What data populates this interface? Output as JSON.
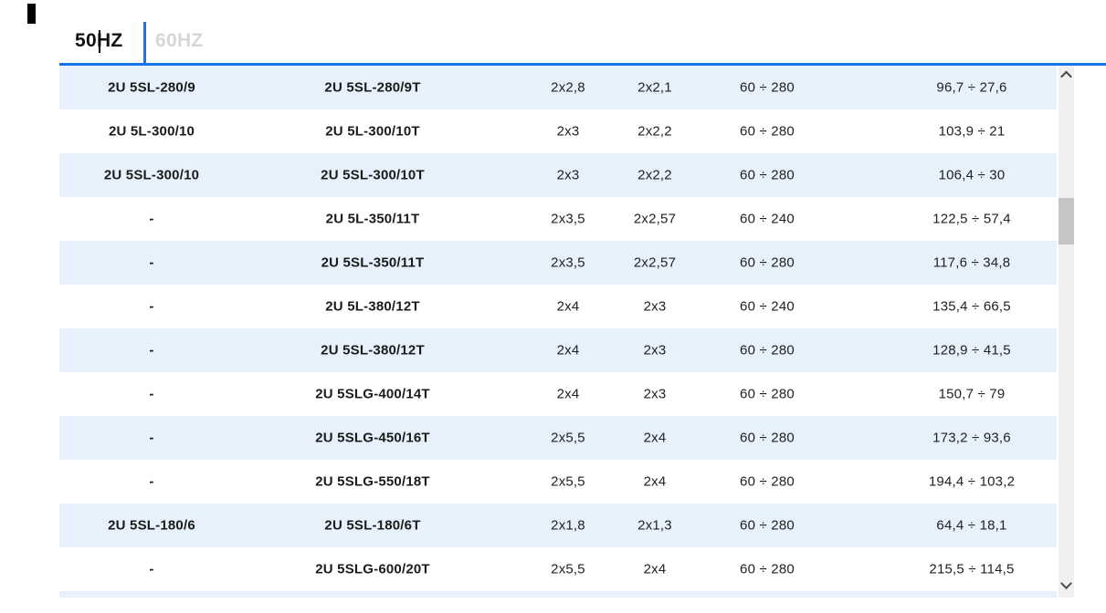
{
  "tabs": {
    "items": [
      {
        "label": "50HZ",
        "active": true
      },
      {
        "label": "60HZ",
        "active": false
      }
    ]
  },
  "table": {
    "rows": [
      {
        "cols": [
          "2U 5SL-280/9",
          "2U 5SL-280/9T",
          "2x2,8",
          "2x2,1",
          "60 ÷ 280",
          "96,7 ÷ 27,6"
        ]
      },
      {
        "cols": [
          "2U 5L-300/10",
          "2U 5L-300/10T",
          "2x3",
          "2x2,2",
          "60 ÷ 280",
          "103,9 ÷ 21"
        ]
      },
      {
        "cols": [
          "2U 5SL-300/10",
          "2U 5SL-300/10T",
          "2x3",
          "2x2,2",
          "60 ÷ 280",
          "106,4 ÷ 30"
        ]
      },
      {
        "cols": [
          "-",
          "2U 5L-350/11T",
          "2x3,5",
          "2x2,57",
          "60 ÷ 240",
          "122,5 ÷ 57,4"
        ]
      },
      {
        "cols": [
          "-",
          "2U 5SL-350/11T",
          "2x3,5",
          "2x2,57",
          "60 ÷ 280",
          "117,6 ÷ 34,8"
        ]
      },
      {
        "cols": [
          "-",
          "2U 5L-380/12T",
          "2x4",
          "2x3",
          "60 ÷ 240",
          "135,4 ÷ 66,5"
        ]
      },
      {
        "cols": [
          "-",
          "2U 5SL-380/12T",
          "2x4",
          "2x3",
          "60 ÷ 280",
          "128,9 ÷ 41,5"
        ]
      },
      {
        "cols": [
          "-",
          "2U 5SLG-400/14T",
          "2x4",
          "2x3",
          "60 ÷ 280",
          "150,7 ÷ 79"
        ]
      },
      {
        "cols": [
          "-",
          "2U 5SLG-450/16T",
          "2x5,5",
          "2x4",
          "60 ÷ 280",
          "173,2 ÷ 93,6"
        ]
      },
      {
        "cols": [
          "-",
          "2U 5SLG-550/18T",
          "2x5,5",
          "2x4",
          "60 ÷ 280",
          "194,4 ÷ 103,2"
        ]
      },
      {
        "cols": [
          "2U 5SL-180/6",
          "2U 5SL-180/6T",
          "2x1,8",
          "2x1,3",
          "60 ÷ 280",
          "64,4 ÷ 18,1"
        ]
      },
      {
        "cols": [
          "-",
          "2U 5SLG-600/20T",
          "2x5,5",
          "2x4",
          "60 ÷ 280",
          "215,5 ÷ 114,5"
        ]
      }
    ]
  },
  "icons": {
    "scrollbar_up": "chevron-up",
    "scrollbar_down": "chevron-down"
  },
  "colors": {
    "accent_blue": "#1674e8",
    "row_alt_bg": "#e6f1fb",
    "text": "#1b1b1b",
    "inactive_tab_text": "#d6d6d6",
    "scrollbar_track": "#f0f0f0",
    "scrollbar_thumb": "#c5c5c5"
  }
}
